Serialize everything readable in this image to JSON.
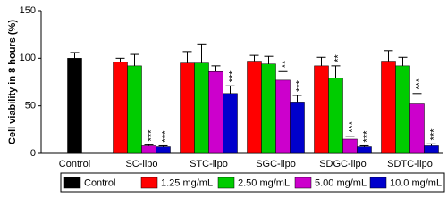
{
  "chart_data": {
    "type": "bar",
    "y_label": "Cell viability in 8 hours (%)",
    "categories": [
      "Control",
      "SC-lipo",
      "STC-lipo",
      "SGC-lipo",
      "SDGC-lipo",
      "SDTC-lipo"
    ],
    "series": [
      {
        "name": "Control",
        "color": "#000000",
        "values": [
          100,
          null,
          null,
          null,
          null,
          null
        ],
        "errors": [
          6,
          null,
          null,
          null,
          null,
          null
        ],
        "significance": [
          null,
          null,
          null,
          null,
          null,
          null
        ]
      },
      {
        "name": "1.25 mg/mL",
        "color": "#ff0000",
        "values": [
          null,
          96,
          95,
          97,
          92,
          97
        ],
        "errors": [
          null,
          4,
          12,
          6,
          9,
          11
        ],
        "significance": [
          null,
          null,
          null,
          null,
          null,
          null
        ]
      },
      {
        "name": "2.50 mg/mL",
        "color": "#00cc00",
        "values": [
          null,
          92,
          95,
          94,
          79,
          92
        ],
        "errors": [
          null,
          12,
          20,
          8,
          13,
          9
        ],
        "significance": [
          null,
          null,
          null,
          null,
          "**",
          null
        ]
      },
      {
        "name": "5.00 mg/mL",
        "color": "#cc00cc",
        "values": [
          null,
          8,
          86,
          77,
          15,
          52
        ],
        "errors": [
          null,
          1,
          6,
          9,
          3,
          11
        ],
        "significance": [
          null,
          "***",
          null,
          "**",
          "***",
          "***"
        ]
      },
      {
        "name": "10.0 mg/mL",
        "color": "#0000cc",
        "values": [
          null,
          7,
          63,
          54,
          7,
          8
        ],
        "errors": [
          null,
          1,
          8,
          7,
          1,
          2
        ],
        "significance": [
          null,
          "***",
          "***",
          "***",
          "***",
          "***"
        ]
      }
    ],
    "ylim": [
      0,
      150
    ],
    "yticks": [
      0,
      50,
      100,
      150
    ],
    "grid": false
  }
}
